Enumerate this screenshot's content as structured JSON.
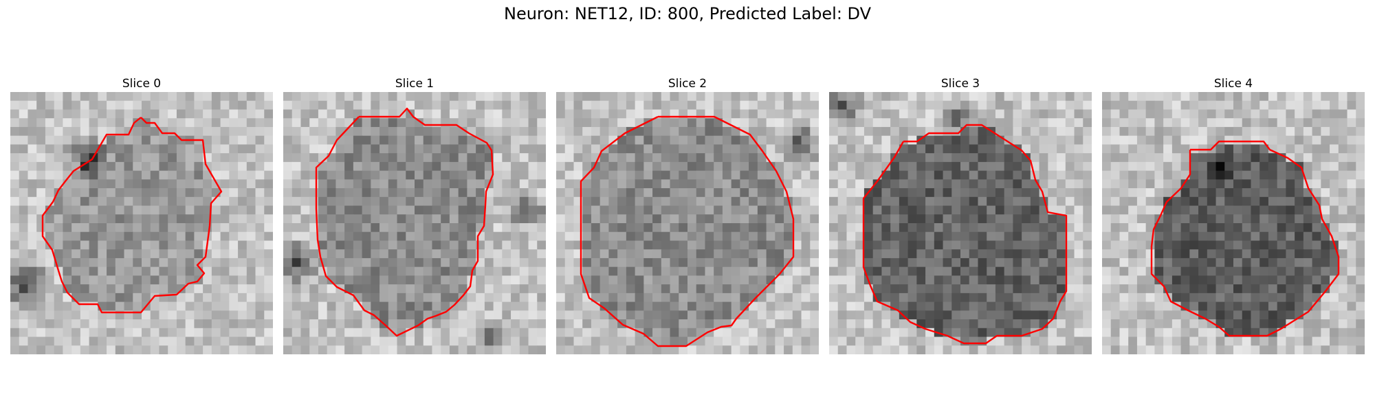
{
  "figure": {
    "title": "Neuron: NET12, ID: 800, Predicted Label: DV",
    "contour_color": "#ff0000",
    "colormap": "gray"
  },
  "panels": [
    {
      "title": "Slice 0",
      "seed": 11,
      "dark_blobs": [
        [
          0.29,
          0.25,
          0.09
        ],
        [
          0.06,
          0.73,
          0.12
        ]
      ],
      "fill_tone": 150
    },
    {
      "title": "Slice 1",
      "seed": 23,
      "dark_blobs": [
        [
          0.05,
          0.65,
          0.1
        ],
        [
          0.93,
          0.45,
          0.08
        ],
        [
          0.8,
          0.93,
          0.08
        ]
      ],
      "fill_tone": 140
    },
    {
      "title": "Slice 2",
      "seed": 37,
      "dark_blobs": [
        [
          0.93,
          0.2,
          0.09
        ]
      ],
      "fill_tone": 140
    },
    {
      "title": "Slice 3",
      "seed": 41,
      "dark_blobs": [
        [
          0.05,
          0.05,
          0.09
        ],
        [
          0.48,
          0.1,
          0.07
        ]
      ],
      "fill_tone": 100
    },
    {
      "title": "Slice 4",
      "seed": 59,
      "dark_blobs": [
        [
          0.45,
          0.3,
          0.05
        ]
      ],
      "fill_tone": 95
    }
  ]
}
